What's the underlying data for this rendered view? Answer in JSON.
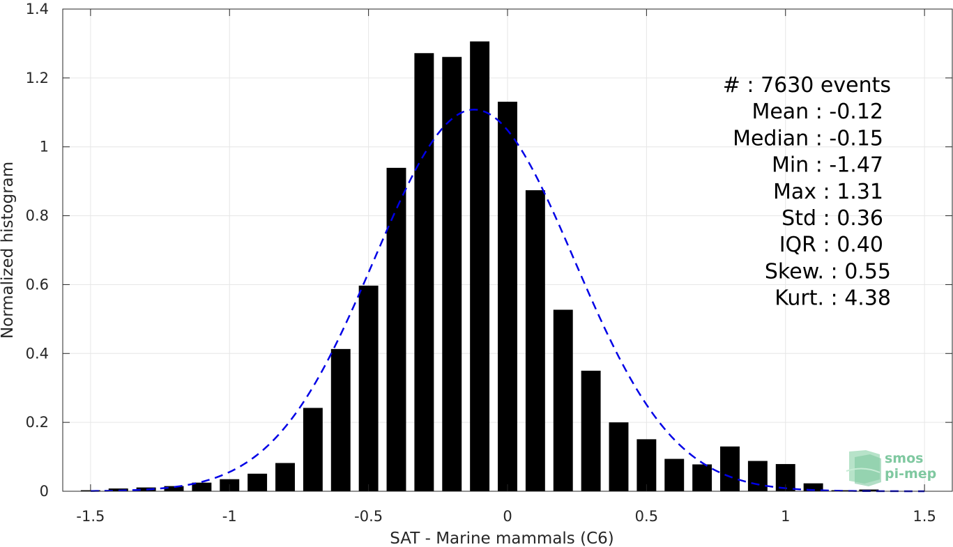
{
  "chart_data": {
    "type": "bar",
    "xlabel": "SAT - Marine mammals (C6)",
    "ylabel": "Normalized histogram",
    "xlim": [
      -1.6,
      1.6
    ],
    "ylim": [
      0,
      1.4
    ],
    "xticks": [
      -1.5,
      -1,
      -0.5,
      0,
      0.5,
      1,
      1.5
    ],
    "xtick_labels": [
      "-1.5",
      "-1",
      "-0.5",
      "0",
      "0.5",
      "1",
      "1.5"
    ],
    "yticks": [
      0,
      0.2,
      0.4,
      0.6,
      0.8,
      1,
      1.2,
      1.4
    ],
    "ytick_labels": [
      "0",
      "0.2",
      "0.4",
      "0.6",
      "0.8",
      "1",
      "1.2",
      "1.4"
    ],
    "grid": true,
    "bar_color": "#000000",
    "bin_centers": [
      -1.5,
      -1.4,
      -1.3,
      -1.2,
      -1.1,
      -1.0,
      -0.9,
      -0.8,
      -0.7,
      -0.6,
      -0.5,
      -0.4,
      -0.3,
      -0.2,
      -0.1,
      0.0,
      0.1,
      0.2,
      0.3,
      0.4,
      0.5,
      0.6,
      0.7,
      0.8,
      0.9,
      1.0,
      1.1,
      1.2,
      1.3
    ],
    "values": [
      0.003,
      0.008,
      0.011,
      0.015,
      0.025,
      0.035,
      0.051,
      0.082,
      0.242,
      0.413,
      0.597,
      0.939,
      1.272,
      1.261,
      1.306,
      1.131,
      0.874,
      0.527,
      0.35,
      0.2,
      0.151,
      0.094,
      0.078,
      0.13,
      0.088,
      0.079,
      0.023,
      0.003,
      0.005
    ],
    "fit_curve": {
      "style": "dashed",
      "color": "#0000e6",
      "mean": -0.12,
      "std": 0.36
    },
    "stats": [
      "#  : 7630 events",
      "Mean : -0.12",
      "Median : -0.15",
      "Min : -1.47",
      "Max : 1.31",
      "Std : 0.36",
      "IQR : 0.40",
      "Skew. : 0.55",
      "Kurt. : 4.38"
    ]
  },
  "logo": {
    "line1": "smos",
    "line2": "pi-mep"
  }
}
